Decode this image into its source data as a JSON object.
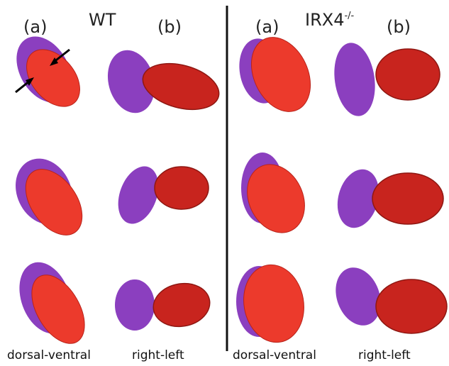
{
  "panels": [
    {
      "title": "WT",
      "col_a": "(a)",
      "col_b": "(b)",
      "footer_a": "dorsal-ventral",
      "footer_b": "right-left"
    },
    {
      "title": "IRX4",
      "title_sup": "-/-",
      "col_a": "(a)",
      "col_b": "(b)",
      "footer_a": "dorsal-ventral",
      "footer_b": "right-left"
    }
  ]
}
